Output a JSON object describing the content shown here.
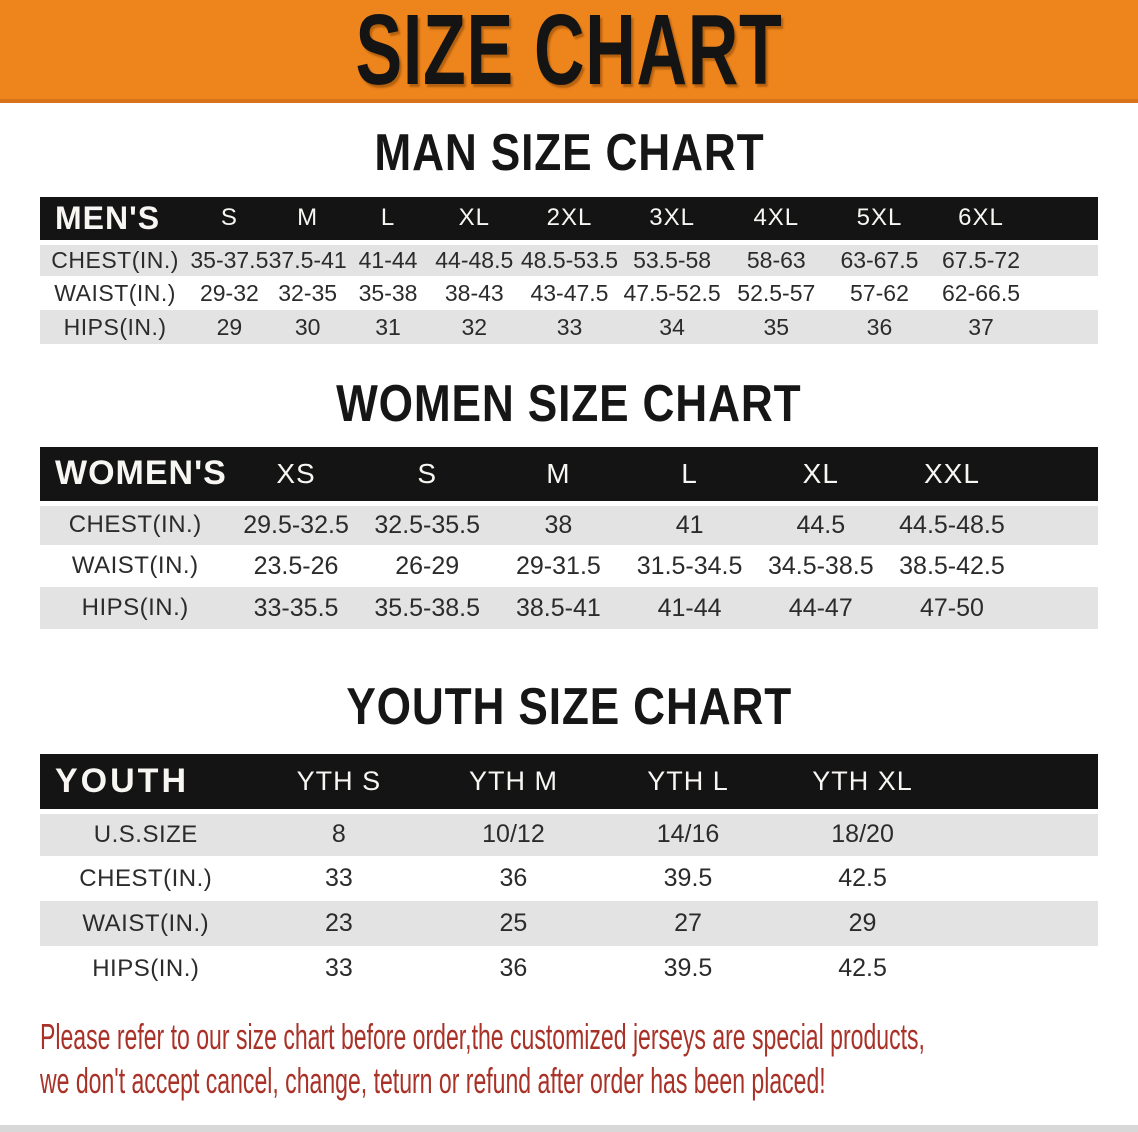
{
  "banner": {
    "title": "SIZE CHART",
    "bg_color": "#ED841C",
    "text_color": "#141414"
  },
  "chart_data": [
    {
      "type": "table",
      "id": "mens",
      "title": "MAN SIZE CHART",
      "corner_label": "MEN'S",
      "columns": [
        "S",
        "M",
        "L",
        "XL",
        "2XL",
        "3XL",
        "4XL",
        "5XL",
        "6XL"
      ],
      "rows": [
        {
          "label": "CHEST(IN.)",
          "values": [
            "35-37.5",
            "37.5-41",
            "41-44",
            "44-48.5",
            "48.5-53.5",
            "53.5-58",
            "58-63",
            "63-67.5",
            "67.5-72"
          ]
        },
        {
          "label": "WAIST(IN.)",
          "values": [
            "29-32",
            "32-35",
            "35-38",
            "38-43",
            "43-47.5",
            "47.5-52.5",
            "52.5-57",
            "57-62",
            "62-66.5"
          ]
        },
        {
          "label": "HIPS(IN.)",
          "values": [
            "29",
            "30",
            "31",
            "32",
            "33",
            "34",
            "35",
            "36",
            "37"
          ]
        }
      ]
    },
    {
      "type": "table",
      "id": "womens",
      "title": "WOMEN SIZE CHART",
      "corner_label": "WOMEN'S",
      "columns": [
        "XS",
        "S",
        "M",
        "L",
        "XL",
        "XXL"
      ],
      "rows": [
        {
          "label": "CHEST(IN.)",
          "values": [
            "29.5-32.5",
            "32.5-35.5",
            "38",
            "41",
            "44.5",
            "44.5-48.5"
          ]
        },
        {
          "label": "WAIST(IN.)",
          "values": [
            "23.5-26",
            "26-29",
            "29-31.5",
            "31.5-34.5",
            "34.5-38.5",
            "38.5-42.5"
          ]
        },
        {
          "label": "HIPS(IN.)",
          "values": [
            "33-35.5",
            "35.5-38.5",
            "38.5-41",
            "41-44",
            "44-47",
            "47-50"
          ]
        }
      ]
    },
    {
      "type": "table",
      "id": "youth",
      "title": "YOUTH SIZE CHART",
      "corner_label": "YOUTH",
      "columns": [
        "YTH S",
        "YTH M",
        "YTH L",
        "YTH XL"
      ],
      "rows": [
        {
          "label": "U.S.SIZE",
          "values": [
            "8",
            "10/12",
            "14/16",
            "18/20"
          ]
        },
        {
          "label": "CHEST(IN.)",
          "values": [
            "33",
            "36",
            "39.5",
            "42.5"
          ]
        },
        {
          "label": "WAIST(IN.)",
          "values": [
            "23",
            "25",
            "27",
            "29"
          ]
        },
        {
          "label": "HIPS(IN.)",
          "values": [
            "33",
            "36",
            "39.5",
            "42.5"
          ]
        }
      ]
    }
  ],
  "footer": {
    "lines": [
      "Please refer to our size chart before order,the customized jerseys are special products,",
      "we don't accept cancel, change, teturn or refund after order has been placed!"
    ],
    "text_color": "#A93228"
  },
  "colors": {
    "banner_orange": "#ED841C",
    "banner_border": "#D8731A",
    "header_band_black": "#141414",
    "stripe_gray": "#E3E3E4",
    "body_text": "#2B2B2B",
    "footer_red": "#A93228",
    "bottom_strip_gray": "#D8D8D8"
  }
}
